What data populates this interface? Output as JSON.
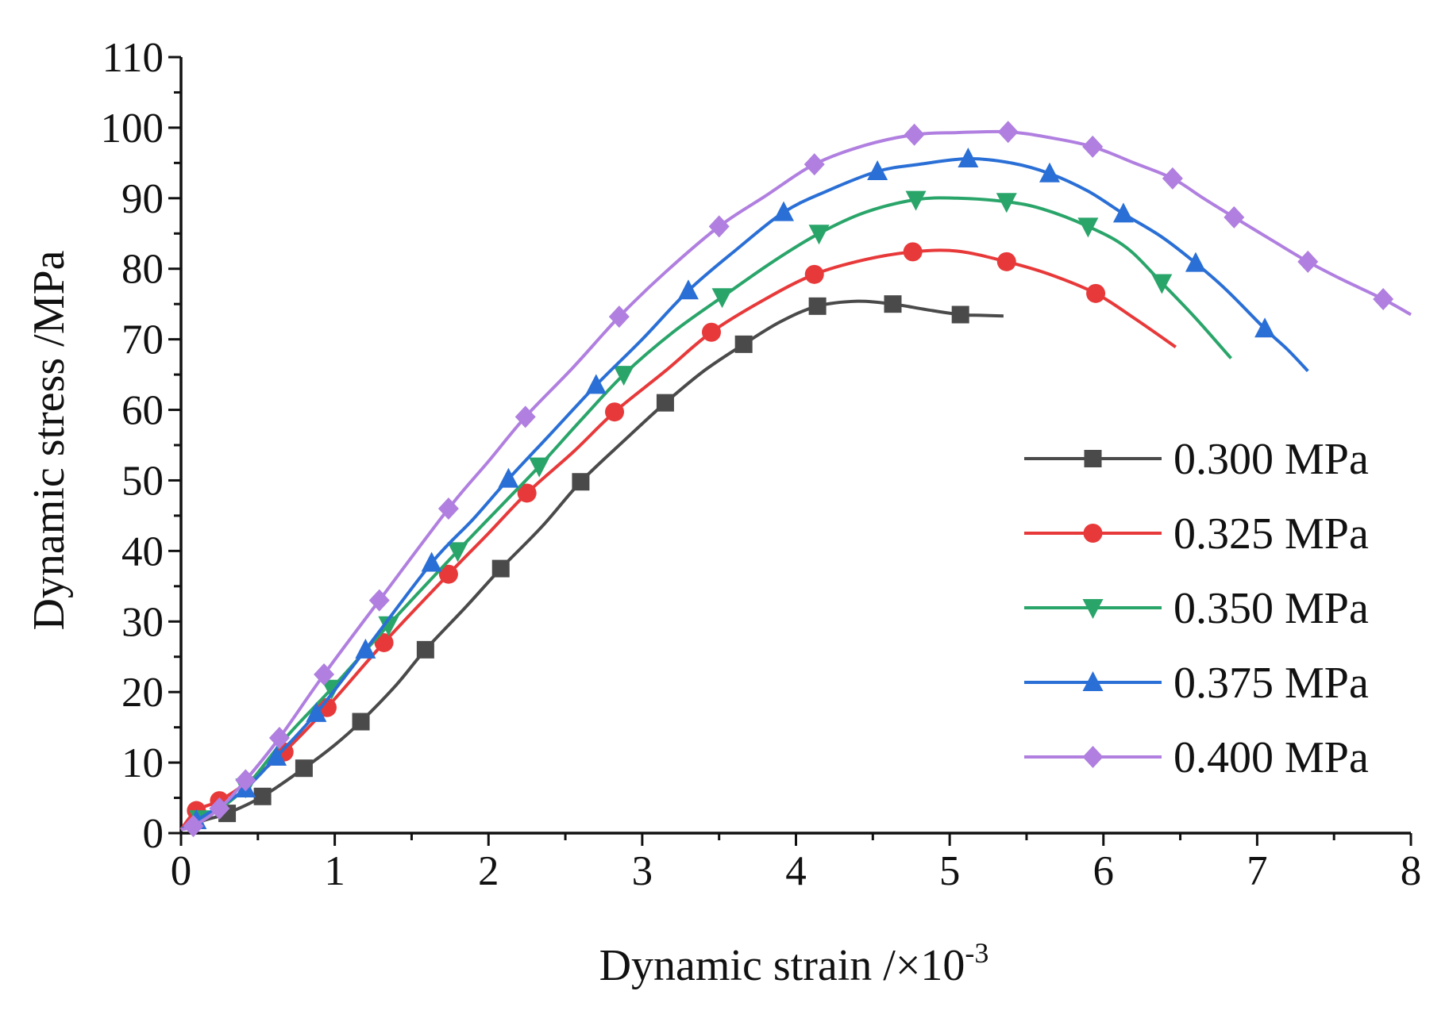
{
  "chart_data": {
    "type": "line",
    "title": "",
    "xlabel": "Dynamic strain /×10",
    "xlabel_exponent": "-3",
    "ylabel": "Dynamic stress /MPa",
    "xlim": [
      0,
      8
    ],
    "ylim": [
      0,
      110
    ],
    "xticks": [
      "0",
      "1",
      "2",
      "3",
      "4",
      "5",
      "6",
      "7",
      "8"
    ],
    "yticks": [
      "0",
      "10",
      "20",
      "30",
      "40",
      "50",
      "60",
      "70",
      "80",
      "90",
      "100",
      "110"
    ],
    "grid": false,
    "legend_position": "right",
    "series": [
      {
        "name": "0.300 MPa",
        "color": "#4a4a4a",
        "marker": "square",
        "line": [
          [
            0.0,
            0.5
          ],
          [
            0.15,
            1.8
          ],
          [
            0.3,
            2.8
          ],
          [
            0.53,
            5.2
          ],
          [
            0.8,
            9.2
          ],
          [
            1.0,
            12.5
          ],
          [
            1.17,
            15.8
          ],
          [
            1.4,
            21.0
          ],
          [
            1.59,
            26.0
          ],
          [
            1.85,
            32.0
          ],
          [
            2.08,
            37.5
          ],
          [
            2.35,
            43.5
          ],
          [
            2.6,
            49.8
          ],
          [
            2.9,
            56.0
          ],
          [
            3.15,
            61.0
          ],
          [
            3.4,
            65.5
          ],
          [
            3.66,
            69.3
          ],
          [
            3.9,
            72.5
          ],
          [
            4.14,
            74.7
          ],
          [
            4.4,
            75.4
          ],
          [
            4.63,
            75.0
          ],
          [
            4.85,
            74.2
          ],
          [
            5.07,
            73.5
          ],
          [
            5.2,
            73.4
          ],
          [
            5.35,
            73.3
          ]
        ],
        "markers": [
          [
            0.3,
            2.8
          ],
          [
            0.53,
            5.2
          ],
          [
            0.8,
            9.2
          ],
          [
            1.17,
            15.8
          ],
          [
            1.59,
            26.0
          ],
          [
            2.08,
            37.5
          ],
          [
            2.6,
            49.8
          ],
          [
            3.15,
            61.0
          ],
          [
            3.66,
            69.3
          ],
          [
            4.14,
            74.7
          ],
          [
            4.63,
            75.0
          ],
          [
            5.07,
            73.5
          ]
        ]
      },
      {
        "name": "0.325 MPa",
        "color": "#e8393a",
        "marker": "circle",
        "line": [
          [
            0.0,
            0.5
          ],
          [
            0.1,
            3.2
          ],
          [
            0.25,
            4.6
          ],
          [
            0.45,
            7.5
          ],
          [
            0.67,
            11.5
          ],
          [
            0.95,
            17.8
          ],
          [
            1.32,
            27.0
          ],
          [
            1.74,
            36.7
          ],
          [
            2.0,
            42.5
          ],
          [
            2.25,
            48.2
          ],
          [
            2.55,
            54.0
          ],
          [
            2.82,
            59.7
          ],
          [
            3.15,
            65.5
          ],
          [
            3.45,
            71.0
          ],
          [
            3.8,
            75.7
          ],
          [
            4.12,
            79.2
          ],
          [
            4.45,
            81.3
          ],
          [
            4.76,
            82.4
          ],
          [
            5.05,
            82.5
          ],
          [
            5.37,
            81.0
          ],
          [
            5.65,
            79.2
          ],
          [
            5.95,
            76.5
          ],
          [
            6.2,
            73.0
          ],
          [
            6.47,
            68.9
          ]
        ],
        "markers": [
          [
            0.1,
            3.2
          ],
          [
            0.25,
            4.6
          ],
          [
            0.67,
            11.5
          ],
          [
            0.95,
            17.8
          ],
          [
            1.32,
            27.0
          ],
          [
            1.74,
            36.7
          ],
          [
            2.25,
            48.2
          ],
          [
            2.82,
            59.7
          ],
          [
            3.45,
            71.0
          ],
          [
            4.12,
            79.2
          ],
          [
            4.76,
            82.4
          ],
          [
            5.37,
            81.0
          ],
          [
            5.95,
            76.5
          ]
        ]
      },
      {
        "name": "0.350 MPa",
        "color": "#2aa56a",
        "marker": "triangle-down",
        "line": [
          [
            0.0,
            0.5
          ],
          [
            0.12,
            2.0
          ],
          [
            0.22,
            3.0
          ],
          [
            0.42,
            6.5
          ],
          [
            0.68,
            13.5
          ],
          [
            0.98,
            20.5
          ],
          [
            1.35,
            29.5
          ],
          [
            1.8,
            40.0
          ],
          [
            2.1,
            46.8
          ],
          [
            2.33,
            52.0
          ],
          [
            2.6,
            58.5
          ],
          [
            2.88,
            65.0
          ],
          [
            3.2,
            71.0
          ],
          [
            3.52,
            76.0
          ],
          [
            3.85,
            81.0
          ],
          [
            4.15,
            85.0
          ],
          [
            4.45,
            88.0
          ],
          [
            4.78,
            89.8
          ],
          [
            5.05,
            90.0
          ],
          [
            5.37,
            89.5
          ],
          [
            5.6,
            88.5
          ],
          [
            5.9,
            86.0
          ],
          [
            6.15,
            83.0
          ],
          [
            6.38,
            78.0
          ],
          [
            6.6,
            73.0
          ],
          [
            6.83,
            67.3
          ]
        ],
        "markers": [
          [
            0.12,
            2.0
          ],
          [
            0.42,
            6.5
          ],
          [
            0.98,
            20.5
          ],
          [
            1.35,
            29.5
          ],
          [
            1.8,
            40.0
          ],
          [
            2.33,
            52.0
          ],
          [
            2.88,
            65.0
          ],
          [
            3.52,
            76.0
          ],
          [
            4.15,
            85.0
          ],
          [
            4.78,
            89.8
          ],
          [
            5.37,
            89.5
          ],
          [
            5.9,
            86.0
          ],
          [
            6.38,
            78.0
          ]
        ]
      },
      {
        "name": "0.375 MPa",
        "color": "#2a6fd6",
        "marker": "triangle-up",
        "line": [
          [
            0.0,
            0.5
          ],
          [
            0.1,
            1.8
          ],
          [
            0.25,
            3.8
          ],
          [
            0.42,
            6.3
          ],
          [
            0.62,
            10.8
          ],
          [
            0.88,
            17.0
          ],
          [
            1.2,
            26.0
          ],
          [
            1.63,
            38.3
          ],
          [
            1.9,
            44.5
          ],
          [
            2.13,
            50.2
          ],
          [
            2.4,
            56.5
          ],
          [
            2.7,
            63.5
          ],
          [
            3.0,
            70.0
          ],
          [
            3.3,
            76.9
          ],
          [
            3.6,
            82.5
          ],
          [
            3.92,
            88.0
          ],
          [
            4.2,
            91.0
          ],
          [
            4.53,
            93.8
          ],
          [
            4.8,
            94.8
          ],
          [
            5.12,
            95.6
          ],
          [
            5.4,
            95.0
          ],
          [
            5.65,
            93.5
          ],
          [
            5.9,
            91.0
          ],
          [
            6.13,
            87.8
          ],
          [
            6.38,
            84.5
          ],
          [
            6.6,
            80.8
          ],
          [
            6.8,
            77.0
          ],
          [
            7.05,
            71.5
          ],
          [
            7.2,
            68.5
          ],
          [
            7.33,
            65.5
          ]
        ],
        "markers": [
          [
            0.1,
            1.8
          ],
          [
            0.42,
            6.3
          ],
          [
            0.62,
            10.8
          ],
          [
            0.88,
            17.0
          ],
          [
            1.2,
            26.0
          ],
          [
            1.63,
            38.3
          ],
          [
            2.13,
            50.2
          ],
          [
            2.7,
            63.5
          ],
          [
            3.3,
            76.9
          ],
          [
            3.92,
            88.0
          ],
          [
            4.53,
            93.8
          ],
          [
            5.12,
            95.6
          ],
          [
            5.65,
            93.5
          ],
          [
            6.13,
            87.8
          ],
          [
            6.6,
            80.8
          ],
          [
            7.05,
            71.5
          ]
        ]
      },
      {
        "name": "0.400 MPa",
        "color": "#b07fe0",
        "marker": "diamond",
        "line": [
          [
            0.0,
            0.5
          ],
          [
            0.08,
            1.0
          ],
          [
            0.25,
            3.5
          ],
          [
            0.42,
            7.5
          ],
          [
            0.64,
            13.5
          ],
          [
            0.93,
            22.5
          ],
          [
            1.29,
            33.0
          ],
          [
            1.74,
            46.0
          ],
          [
            2.0,
            52.7
          ],
          [
            2.24,
            59.0
          ],
          [
            2.55,
            66.0
          ],
          [
            2.85,
            73.2
          ],
          [
            3.15,
            79.5
          ],
          [
            3.5,
            86.0
          ],
          [
            3.8,
            90.3
          ],
          [
            4.12,
            94.8
          ],
          [
            4.45,
            97.5
          ],
          [
            4.77,
            99.0
          ],
          [
            5.05,
            99.3
          ],
          [
            5.38,
            99.4
          ],
          [
            5.65,
            98.6
          ],
          [
            5.93,
            97.3
          ],
          [
            6.2,
            95.0
          ],
          [
            6.45,
            92.8
          ],
          [
            6.65,
            90.0
          ],
          [
            6.85,
            87.3
          ],
          [
            7.1,
            84.0
          ],
          [
            7.33,
            81.0
          ],
          [
            7.55,
            78.5
          ],
          [
            7.82,
            75.7
          ],
          [
            8.0,
            73.5
          ]
        ],
        "markers": [
          [
            0.08,
            1.0
          ],
          [
            0.25,
            3.5
          ],
          [
            0.42,
            7.5
          ],
          [
            0.64,
            13.5
          ],
          [
            0.93,
            22.5
          ],
          [
            1.29,
            33.0
          ],
          [
            1.74,
            46.0
          ],
          [
            2.24,
            59.0
          ],
          [
            2.85,
            73.2
          ],
          [
            3.5,
            86.0
          ],
          [
            4.12,
            94.8
          ],
          [
            4.77,
            99.0
          ],
          [
            5.38,
            99.4
          ],
          [
            5.93,
            97.3
          ],
          [
            6.45,
            92.8
          ],
          [
            6.85,
            87.3
          ],
          [
            7.33,
            81.0
          ],
          [
            7.82,
            75.7
          ]
        ]
      }
    ]
  }
}
